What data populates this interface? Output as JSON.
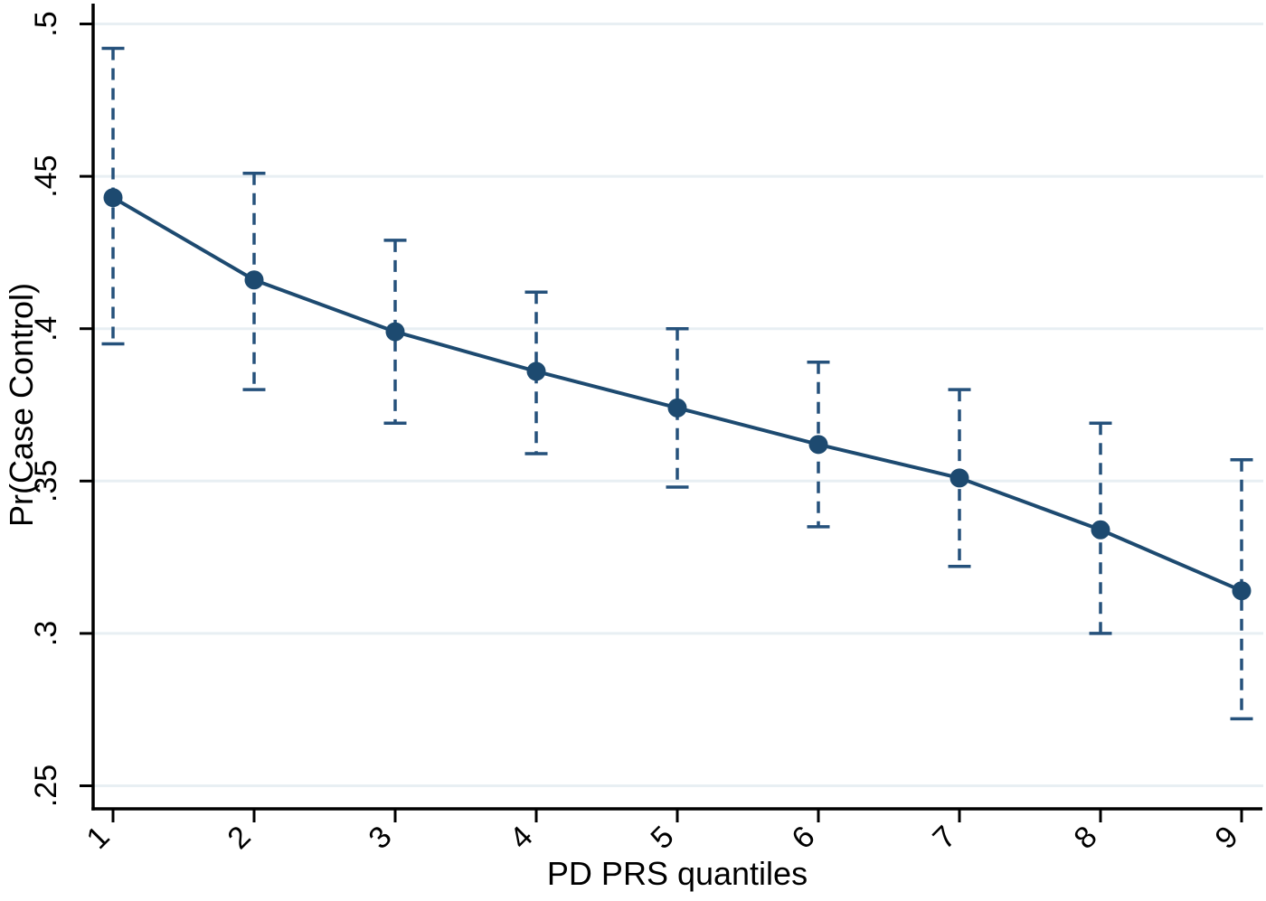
{
  "chart_data": {
    "type": "line",
    "title": "",
    "xlabel": "PD PRS quantiles",
    "ylabel": "Pr(Case Control)",
    "x": [
      1,
      2,
      3,
      4,
      5,
      6,
      7,
      8,
      9
    ],
    "x_tick_labels": [
      "1",
      "2",
      "3",
      "4",
      "5",
      "6",
      "7",
      "8",
      "9"
    ],
    "yticks": [
      0.25,
      0.3,
      0.35,
      0.4,
      0.45,
      0.5
    ],
    "ytick_labels": [
      ".25",
      ".3",
      ".35",
      ".4",
      ".45",
      ".5"
    ],
    "xlim": [
      0.86,
      9.15
    ],
    "ylim": [
      0.243,
      0.505
    ],
    "grid": "horizontal-only",
    "legend": "none",
    "x_tick_angle": -45,
    "y_tick_angle": -90,
    "marker": "filled-circle",
    "error_bar_style": "dashed-capped",
    "series": [
      {
        "name": "pr-case-control",
        "values": [
          0.443,
          0.416,
          0.399,
          0.386,
          0.374,
          0.362,
          0.351,
          0.334,
          0.314
        ],
        "ci_lower": [
          0.395,
          0.38,
          0.369,
          0.359,
          0.348,
          0.335,
          0.322,
          0.3,
          0.272
        ],
        "ci_upper": [
          0.492,
          0.451,
          0.429,
          0.412,
          0.4,
          0.389,
          0.38,
          0.369,
          0.357
        ]
      }
    ],
    "colors": {
      "line": "#1d4a70",
      "marker": "#1d4a70",
      "error_bar": "#25517b",
      "gridline": "#e8eff3",
      "axis": "#000000",
      "text": "#000000",
      "background": "#ffffff"
    }
  }
}
